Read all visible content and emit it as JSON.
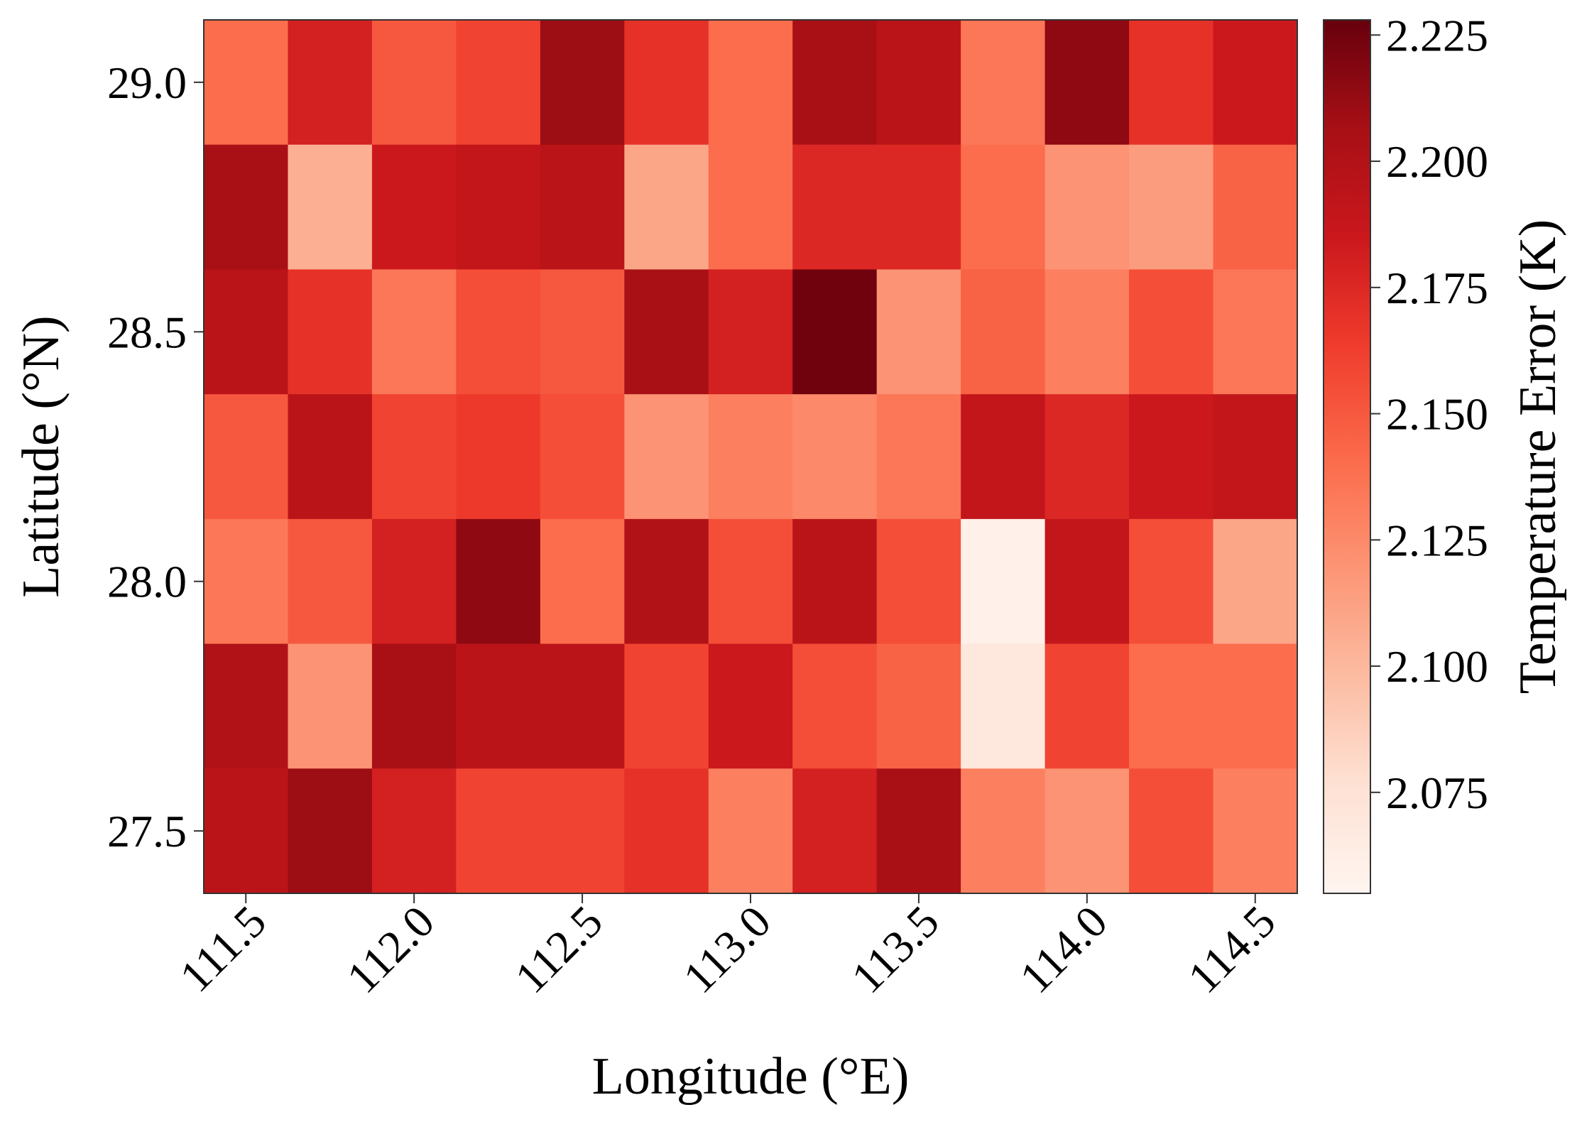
{
  "chart_data": {
    "type": "heatmap",
    "title": "",
    "xlabel": "Longitude (°E)",
    "ylabel": "Latitude (°N)",
    "x": [
      111.5,
      111.75,
      112.0,
      112.25,
      112.5,
      112.75,
      113.0,
      113.25,
      113.5,
      113.75,
      114.0,
      114.25,
      114.5
    ],
    "y": [
      29.0,
      28.75,
      28.5,
      28.25,
      28.0,
      27.75,
      27.5
    ],
    "xlim": [
      111.375,
      114.625
    ],
    "ylim": [
      27.375,
      29.125
    ],
    "x_ticks": [
      "111.5",
      "112.0",
      "112.5",
      "113.0",
      "113.5",
      "114.0",
      "114.5"
    ],
    "y_ticks": [
      "27.5",
      "28.0",
      "28.5",
      "29.0"
    ],
    "values": [
      [
        2.14,
        2.18,
        2.15,
        2.16,
        2.21,
        2.17,
        2.14,
        2.205,
        2.195,
        2.135,
        2.215,
        2.17,
        2.185
      ],
      [
        2.205,
        2.105,
        2.185,
        2.19,
        2.195,
        2.11,
        2.14,
        2.175,
        2.175,
        2.14,
        2.12,
        2.115,
        2.145
      ],
      [
        2.195,
        2.17,
        2.135,
        2.155,
        2.15,
        2.205,
        2.18,
        2.225,
        2.12,
        2.145,
        2.13,
        2.155,
        2.135
      ],
      [
        2.15,
        2.195,
        2.16,
        2.165,
        2.155,
        2.12,
        2.13,
        2.125,
        2.135,
        2.19,
        2.175,
        2.185,
        2.19
      ],
      [
        2.135,
        2.15,
        2.18,
        2.215,
        2.14,
        2.2,
        2.155,
        2.195,
        2.155,
        2.06,
        2.19,
        2.155,
        2.11
      ],
      [
        2.2,
        2.12,
        2.205,
        2.195,
        2.195,
        2.16,
        2.185,
        2.155,
        2.145,
        2.07,
        2.16,
        2.14,
        2.14
      ],
      [
        2.195,
        2.21,
        2.18,
        2.16,
        2.16,
        2.17,
        2.13,
        2.18,
        2.205,
        2.13,
        2.12,
        2.155,
        2.13
      ]
    ],
    "colorbar": {
      "label": "Temperature Error (K)",
      "min": 2.055,
      "max": 2.228,
      "ticks": [
        "2.075",
        "2.100",
        "2.125",
        "2.150",
        "2.175",
        "2.200",
        "2.225"
      ],
      "colormap": "Reds"
    },
    "grid": false
  }
}
